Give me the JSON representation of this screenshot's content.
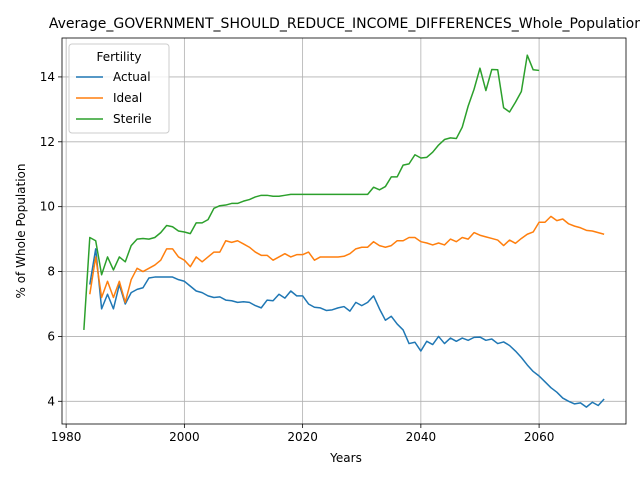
{
  "chart_data": {
    "type": "line",
    "title": "Average_GOVERNMENT_SHOULD_REDUCE_INCOME_DIFFERENCES_Whole_Population",
    "xlabel": "Years",
    "ylabel": "% of Whole Population",
    "xlim": [
      1979.3,
      2074.7
    ],
    "ylim": [
      3.3,
      15.2
    ],
    "xticks": [
      1980,
      2000,
      2020,
      2040,
      2060
    ],
    "yticks": [
      4,
      6,
      8,
      10,
      12,
      14
    ],
    "grid": true,
    "legend": {
      "title": "Fertility",
      "position": "upper-left"
    },
    "series": [
      {
        "name": "Actual",
        "color": "#1f77b4",
        "points": [
          [
            1984,
            7.6
          ],
          [
            1985,
            8.7
          ],
          [
            1986,
            6.85
          ],
          [
            1987,
            7.3
          ],
          [
            1988,
            6.85
          ],
          [
            1989,
            7.6
          ],
          [
            1990,
            7.0
          ],
          [
            1991,
            7.35
          ],
          [
            1992,
            7.45
          ],
          [
            1993,
            7.5
          ],
          [
            1994,
            7.8
          ],
          [
            1995,
            7.83
          ],
          [
            1996,
            7.83
          ],
          [
            1997,
            7.83
          ],
          [
            1998,
            7.83
          ],
          [
            1999,
            7.75
          ],
          [
            2000,
            7.7
          ],
          [
            2001,
            7.55
          ],
          [
            2002,
            7.4
          ],
          [
            2003,
            7.35
          ],
          [
            2004,
            7.25
          ],
          [
            2005,
            7.2
          ],
          [
            2006,
            7.22
          ],
          [
            2007,
            7.12
          ],
          [
            2008,
            7.1
          ],
          [
            2009,
            7.05
          ],
          [
            2010,
            7.07
          ],
          [
            2011,
            7.05
          ],
          [
            2012,
            6.95
          ],
          [
            2013,
            6.88
          ],
          [
            2014,
            7.12
          ],
          [
            2015,
            7.1
          ],
          [
            2016,
            7.3
          ],
          [
            2017,
            7.18
          ],
          [
            2018,
            7.4
          ],
          [
            2019,
            7.25
          ],
          [
            2020,
            7.25
          ],
          [
            2021,
            7.0
          ],
          [
            2022,
            6.9
          ],
          [
            2023,
            6.88
          ],
          [
            2024,
            6.8
          ],
          [
            2025,
            6.82
          ],
          [
            2026,
            6.88
          ],
          [
            2027,
            6.92
          ],
          [
            2028,
            6.78
          ],
          [
            2029,
            7.05
          ],
          [
            2030,
            6.95
          ],
          [
            2031,
            7.05
          ],
          [
            2032,
            7.25
          ],
          [
            2033,
            6.85
          ],
          [
            2034,
            6.5
          ],
          [
            2035,
            6.62
          ],
          [
            2036,
            6.38
          ],
          [
            2037,
            6.2
          ],
          [
            2038,
            5.78
          ],
          [
            2039,
            5.82
          ],
          [
            2040,
            5.55
          ],
          [
            2041,
            5.85
          ],
          [
            2042,
            5.75
          ],
          [
            2043,
            6.0
          ],
          [
            2044,
            5.78
          ],
          [
            2045,
            5.95
          ],
          [
            2046,
            5.85
          ],
          [
            2047,
            5.95
          ],
          [
            2048,
            5.88
          ],
          [
            2049,
            5.97
          ],
          [
            2050,
            5.98
          ],
          [
            2051,
            5.88
          ],
          [
            2052,
            5.92
          ],
          [
            2053,
            5.78
          ],
          [
            2054,
            5.83
          ],
          [
            2055,
            5.72
          ],
          [
            2056,
            5.55
          ],
          [
            2057,
            5.35
          ],
          [
            2058,
            5.12
          ],
          [
            2059,
            4.92
          ],
          [
            2060,
            4.78
          ],
          [
            2061,
            4.6
          ],
          [
            2062,
            4.42
          ],
          [
            2063,
            4.28
          ],
          [
            2064,
            4.1
          ],
          [
            2065,
            4.0
          ],
          [
            2066,
            3.92
          ],
          [
            2067,
            3.95
          ],
          [
            2068,
            3.82
          ],
          [
            2069,
            3.97
          ],
          [
            2070,
            3.87
          ],
          [
            2071,
            4.07
          ]
        ]
      },
      {
        "name": "Ideal",
        "color": "#ff7f0e",
        "points": [
          [
            1984,
            7.3
          ],
          [
            1985,
            8.45
          ],
          [
            1986,
            7.2
          ],
          [
            1987,
            7.7
          ],
          [
            1988,
            7.2
          ],
          [
            1989,
            7.7
          ],
          [
            1990,
            7.05
          ],
          [
            1991,
            7.75
          ],
          [
            1992,
            8.1
          ],
          [
            1993,
            8.0
          ],
          [
            1994,
            8.1
          ],
          [
            1995,
            8.2
          ],
          [
            1996,
            8.35
          ],
          [
            1997,
            8.7
          ],
          [
            1998,
            8.7
          ],
          [
            1999,
            8.45
          ],
          [
            2000,
            8.35
          ],
          [
            2001,
            8.15
          ],
          [
            2002,
            8.45
          ],
          [
            2003,
            8.3
          ],
          [
            2004,
            8.45
          ],
          [
            2005,
            8.6
          ],
          [
            2006,
            8.6
          ],
          [
            2007,
            8.95
          ],
          [
            2008,
            8.9
          ],
          [
            2009,
            8.95
          ],
          [
            2010,
            8.85
          ],
          [
            2011,
            8.75
          ],
          [
            2012,
            8.6
          ],
          [
            2013,
            8.5
          ],
          [
            2014,
            8.5
          ],
          [
            2015,
            8.35
          ],
          [
            2016,
            8.45
          ],
          [
            2017,
            8.55
          ],
          [
            2018,
            8.45
          ],
          [
            2019,
            8.52
          ],
          [
            2020,
            8.52
          ],
          [
            2021,
            8.6
          ],
          [
            2022,
            8.35
          ],
          [
            2023,
            8.45
          ],
          [
            2024,
            8.45
          ],
          [
            2025,
            8.45
          ],
          [
            2026,
            8.45
          ],
          [
            2027,
            8.47
          ],
          [
            2028,
            8.55
          ],
          [
            2029,
            8.7
          ],
          [
            2030,
            8.75
          ],
          [
            2031,
            8.75
          ],
          [
            2032,
            8.92
          ],
          [
            2033,
            8.8
          ],
          [
            2034,
            8.75
          ],
          [
            2035,
            8.8
          ],
          [
            2036,
            8.95
          ],
          [
            2037,
            8.95
          ],
          [
            2038,
            9.05
          ],
          [
            2039,
            9.05
          ],
          [
            2040,
            8.92
          ],
          [
            2041,
            8.88
          ],
          [
            2042,
            8.82
          ],
          [
            2043,
            8.88
          ],
          [
            2044,
            8.82
          ],
          [
            2045,
            9.0
          ],
          [
            2046,
            8.92
          ],
          [
            2047,
            9.05
          ],
          [
            2048,
            9.0
          ],
          [
            2049,
            9.2
          ],
          [
            2050,
            9.12
          ],
          [
            2051,
            9.07
          ],
          [
            2052,
            9.02
          ],
          [
            2053,
            8.97
          ],
          [
            2054,
            8.8
          ],
          [
            2055,
            8.97
          ],
          [
            2056,
            8.87
          ],
          [
            2057,
            9.02
          ],
          [
            2058,
            9.15
          ],
          [
            2059,
            9.22
          ],
          [
            2060,
            9.52
          ],
          [
            2061,
            9.52
          ],
          [
            2062,
            9.7
          ],
          [
            2063,
            9.57
          ],
          [
            2064,
            9.62
          ],
          [
            2065,
            9.47
          ],
          [
            2066,
            9.4
          ],
          [
            2067,
            9.35
          ],
          [
            2068,
            9.27
          ],
          [
            2069,
            9.25
          ],
          [
            2070,
            9.2
          ],
          [
            2071,
            9.15
          ]
        ]
      },
      {
        "name": "Sterile",
        "color": "#2ca02c",
        "points": [
          [
            1983,
            6.2
          ],
          [
            1984,
            9.05
          ],
          [
            1985,
            8.95
          ],
          [
            1986,
            7.9
          ],
          [
            1987,
            8.45
          ],
          [
            1988,
            8.05
          ],
          [
            1989,
            8.45
          ],
          [
            1990,
            8.3
          ],
          [
            1991,
            8.8
          ],
          [
            1992,
            9.0
          ],
          [
            1993,
            9.02
          ],
          [
            1994,
            9.0
          ],
          [
            1995,
            9.05
          ],
          [
            1996,
            9.2
          ],
          [
            1997,
            9.42
          ],
          [
            1998,
            9.38
          ],
          [
            1999,
            9.25
          ],
          [
            2000,
            9.22
          ],
          [
            2001,
            9.17
          ],
          [
            2002,
            9.5
          ],
          [
            2003,
            9.5
          ],
          [
            2004,
            9.6
          ],
          [
            2005,
            9.95
          ],
          [
            2006,
            10.03
          ],
          [
            2007,
            10.05
          ],
          [
            2008,
            10.1
          ],
          [
            2009,
            10.1
          ],
          [
            2010,
            10.17
          ],
          [
            2011,
            10.22
          ],
          [
            2012,
            10.3
          ],
          [
            2013,
            10.35
          ],
          [
            2014,
            10.35
          ],
          [
            2015,
            10.32
          ],
          [
            2016,
            10.32
          ],
          [
            2017,
            10.35
          ],
          [
            2018,
            10.38
          ],
          [
            2019,
            10.38
          ],
          [
            2020,
            10.38
          ],
          [
            2021,
            10.38
          ],
          [
            2022,
            10.38
          ],
          [
            2023,
            10.38
          ],
          [
            2024,
            10.38
          ],
          [
            2025,
            10.38
          ],
          [
            2026,
            10.38
          ],
          [
            2027,
            10.38
          ],
          [
            2028,
            10.38
          ],
          [
            2029,
            10.38
          ],
          [
            2030,
            10.38
          ],
          [
            2031,
            10.38
          ],
          [
            2032,
            10.6
          ],
          [
            2033,
            10.52
          ],
          [
            2034,
            10.62
          ],
          [
            2035,
            10.92
          ],
          [
            2036,
            10.92
          ],
          [
            2037,
            11.28
          ],
          [
            2038,
            11.32
          ],
          [
            2039,
            11.6
          ],
          [
            2040,
            11.5
          ],
          [
            2041,
            11.52
          ],
          [
            2042,
            11.68
          ],
          [
            2043,
            11.9
          ],
          [
            2044,
            12.07
          ],
          [
            2045,
            12.12
          ],
          [
            2046,
            12.1
          ],
          [
            2047,
            12.45
          ],
          [
            2048,
            13.1
          ],
          [
            2049,
            13.62
          ],
          [
            2050,
            14.27
          ],
          [
            2051,
            13.58
          ],
          [
            2052,
            14.23
          ],
          [
            2053,
            14.22
          ],
          [
            2054,
            13.05
          ],
          [
            2055,
            12.92
          ],
          [
            2056,
            13.22
          ],
          [
            2057,
            13.55
          ],
          [
            2058,
            14.67
          ],
          [
            2059,
            14.22
          ],
          [
            2060,
            14.2
          ]
        ]
      }
    ]
  }
}
